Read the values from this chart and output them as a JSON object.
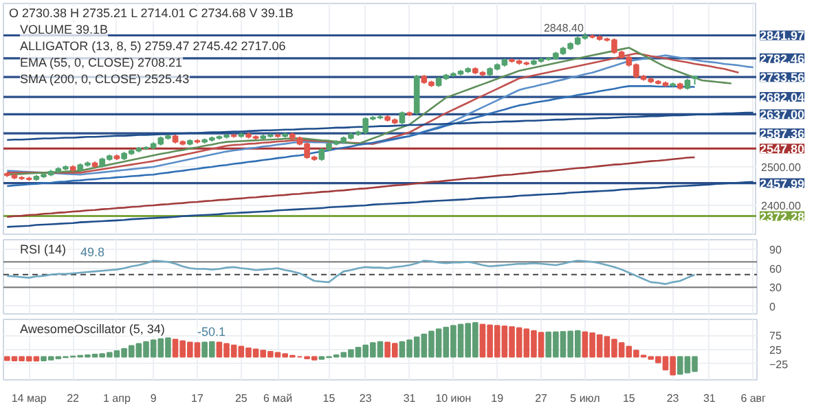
{
  "chart_data": [
    {
      "type": "candlestick",
      "tick_labels": "y",
      "grid": true,
      "annotations": [
        "O 2730.38 H 2735.21 L 2714.01 C 2734.68 V 39.1B",
        "VOLUME 39.1B",
        "ALLIGATOR (13, 8, 5) 2759.47 2745.42 2717.06",
        "EMA (55, 0, CLOSE) 2708.21",
        "SMA (200, 0, CLOSE) 2525.43",
        "2848.40"
      ],
      "categories": [
        null,
        null,
        null,
        null,
        null,
        null,
        null,
        null,
        null,
        null,
        null,
        null,
        null,
        null,
        null,
        null,
        null,
        null,
        null,
        null,
        null,
        null,
        null,
        null,
        null,
        null,
        null,
        null,
        null,
        null,
        null,
        null,
        null,
        null,
        null,
        null,
        null,
        null,
        null,
        null,
        null,
        null,
        null,
        null,
        null,
        null,
        null,
        null,
        null,
        null,
        null,
        null,
        null,
        null,
        null,
        null,
        null,
        null,
        null,
        null,
        null,
        null,
        null,
        null,
        null,
        null,
        null,
        null,
        null,
        null,
        null,
        null,
        null,
        null,
        null,
        null,
        null,
        null,
        null,
        null,
        null,
        null,
        null,
        null,
        null,
        null,
        null,
        null,
        null,
        null,
        null,
        null,
        null,
        null,
        null,
        null,
        null,
        null,
        null,
        null,
        null,
        null,
        null
      ],
      "ylim": [
        2325,
        2925
      ],
      "yticks": [
        {
          "value": 2500,
          "label": "2500.00"
        },
        {
          "value": 2400,
          "label": "2400.00"
        }
      ],
      "ohlc": [
        [
          2482,
          2486,
          2474,
          2478
        ],
        [
          2478,
          2482,
          2468,
          2472
        ],
        [
          2472,
          2476,
          2466,
          2470
        ],
        [
          2470,
          2474,
          2464,
          2468
        ],
        [
          2468,
          2479,
          2464,
          2475
        ],
        [
          2475,
          2484,
          2471,
          2480
        ],
        [
          2480,
          2492,
          2476,
          2488
        ],
        [
          2488,
          2499,
          2484,
          2495
        ],
        [
          2495,
          2504,
          2491,
          2500
        ],
        [
          2500,
          2504,
          2488,
          2492
        ],
        [
          2492,
          2509,
          2488,
          2505
        ],
        [
          2505,
          2514,
          2501,
          2510
        ],
        [
          2510,
          2514,
          2498,
          2502
        ],
        [
          2502,
          2524,
          2498,
          2520
        ],
        [
          2520,
          2532,
          2516,
          2528
        ],
        [
          2528,
          2532,
          2518,
          2522
        ],
        [
          2522,
          2539,
          2518,
          2535
        ],
        [
          2535,
          2546,
          2531,
          2542
        ],
        [
          2542,
          2552,
          2538,
          2548
        ],
        [
          2548,
          2554,
          2544,
          2550
        ],
        [
          2550,
          2564,
          2546,
          2560
        ],
        [
          2560,
          2579,
          2556,
          2575
        ],
        [
          2575,
          2584,
          2571,
          2580
        ],
        [
          2580,
          2584,
          2561,
          2565
        ],
        [
          2565,
          2569,
          2556,
          2560
        ],
        [
          2560,
          2572,
          2556,
          2568
        ],
        [
          2568,
          2572,
          2561,
          2565
        ],
        [
          2565,
          2574,
          2561,
          2570
        ],
        [
          2570,
          2579,
          2566,
          2575
        ],
        [
          2575,
          2582,
          2571,
          2578
        ],
        [
          2578,
          2586,
          2574,
          2582
        ],
        [
          2582,
          2586,
          2576,
          2580
        ],
        [
          2580,
          2589,
          2576,
          2585
        ],
        [
          2585,
          2589,
          2574,
          2578
        ],
        [
          2578,
          2582,
          2571,
          2575
        ],
        [
          2575,
          2584,
          2571,
          2580
        ],
        [
          2580,
          2586,
          2576,
          2582
        ],
        [
          2582,
          2586,
          2576,
          2580
        ],
        [
          2580,
          2589,
          2576,
          2585
        ],
        [
          2585,
          2589,
          2571,
          2575
        ],
        [
          2575,
          2579,
          2556,
          2560
        ],
        [
          2560,
          2564,
          2521,
          2525
        ],
        [
          2525,
          2529,
          2516,
          2520
        ],
        [
          2520,
          2549,
          2516,
          2545
        ],
        [
          2545,
          2564,
          2541,
          2560
        ],
        [
          2560,
          2569,
          2556,
          2565
        ],
        [
          2565,
          2579,
          2561,
          2575
        ],
        [
          2575,
          2589,
          2571,
          2585
        ],
        [
          2585,
          2594,
          2581,
          2590
        ],
        [
          2590,
          2629,
          2586,
          2625
        ],
        [
          2625,
          2632,
          2621,
          2628
        ],
        [
          2628,
          2634,
          2624,
          2630
        ],
        [
          2630,
          2634,
          2618,
          2622
        ],
        [
          2622,
          2626,
          2611,
          2615
        ],
        [
          2615,
          2644,
          2611,
          2640
        ],
        [
          2640,
          2644,
          2632,
          2636
        ],
        [
          2640,
          2739,
          2636,
          2735
        ],
        [
          2735,
          2739,
          2716,
          2720
        ],
        [
          2720,
          2724,
          2708,
          2712
        ],
        [
          2712,
          2734,
          2708,
          2730
        ],
        [
          2730,
          2742,
          2726,
          2738
        ],
        [
          2738,
          2746,
          2734,
          2742
        ],
        [
          2742,
          2752,
          2738,
          2748
        ],
        [
          2748,
          2759,
          2744,
          2755
        ],
        [
          2755,
          2759,
          2741,
          2745
        ],
        [
          2745,
          2749,
          2736,
          2740
        ],
        [
          2740,
          2759,
          2736,
          2755
        ],
        [
          2755,
          2769,
          2751,
          2765
        ],
        [
          2765,
          2782,
          2761,
          2778
        ],
        [
          2778,
          2782,
          2771,
          2775
        ],
        [
          2775,
          2779,
          2766,
          2770
        ],
        [
          2770,
          2774,
          2764,
          2768
        ],
        [
          2768,
          2779,
          2764,
          2775
        ],
        [
          2775,
          2784,
          2771,
          2780
        ],
        [
          2780,
          2786,
          2776,
          2782
        ],
        [
          2782,
          2799,
          2778,
          2795
        ],
        [
          2795,
          2812,
          2791,
          2808
        ],
        [
          2808,
          2824,
          2804,
          2820
        ],
        [
          2820,
          2839,
          2816,
          2835
        ],
        [
          2835,
          2848.4,
          2831,
          2840
        ],
        [
          2840,
          2844,
          2834,
          2838
        ],
        [
          2838,
          2842,
          2828,
          2832
        ],
        [
          2832,
          2836,
          2826,
          2830
        ],
        [
          2830,
          2834,
          2794,
          2798
        ],
        [
          2798,
          2802,
          2781,
          2785
        ],
        [
          2785,
          2789,
          2761,
          2765
        ],
        [
          2765,
          2769,
          2731,
          2735
        ],
        [
          2735,
          2739,
          2724,
          2728
        ],
        [
          2728,
          2732,
          2718,
          2722
        ],
        [
          2722,
          2726,
          2714,
          2718
        ],
        [
          2718,
          2722,
          2708,
          2712
        ],
        [
          2712,
          2719,
          2708,
          2715
        ],
        [
          2715,
          2719,
          2701,
          2705
        ],
        [
          2705,
          2729,
          2701,
          2725
        ],
        [
          2730.38,
          2735.21,
          2714.01,
          2734.68
        ],
        null,
        null,
        null,
        null,
        null,
        null,
        null,
        null
      ],
      "colors": [
        "#e2574c",
        "#e2574c",
        "#e2574c",
        "#e2574c",
        "#53a36f",
        "#53a36f",
        "#53a36f",
        "#53a36f",
        "#53a36f",
        "#e2574c",
        "#53a36f",
        "#53a36f",
        "#e2574c",
        "#53a36f",
        "#53a36f",
        "#e2574c",
        "#53a36f",
        "#53a36f",
        "#53a36f",
        "#53a36f",
        "#53a36f",
        "#53a36f",
        "#53a36f",
        "#e2574c",
        "#e2574c",
        "#53a36f",
        "#e2574c",
        "#53a36f",
        "#53a36f",
        "#53a36f",
        "#53a36f",
        "#e2574c",
        "#53a36f",
        "#e2574c",
        "#e2574c",
        "#53a36f",
        "#53a36f",
        "#e2574c",
        "#53a36f",
        "#e2574c",
        "#e2574c",
        "#e2574c",
        "#e2574c",
        "#53a36f",
        "#53a36f",
        "#53a36f",
        "#53a36f",
        "#53a36f",
        "#53a36f",
        "#53a36f",
        "#53a36f",
        "#53a36f",
        "#e2574c",
        "#e2574c",
        "#53a36f",
        "#e2574c",
        "#53a36f",
        "#e2574c",
        "#e2574c",
        "#53a36f",
        "#53a36f",
        "#53a36f",
        "#53a36f",
        "#53a36f",
        "#e2574c",
        "#e2574c",
        "#53a36f",
        "#53a36f",
        "#53a36f",
        "#e2574c",
        "#e2574c",
        "#e2574c",
        "#53a36f",
        "#53a36f",
        "#53a36f",
        "#53a36f",
        "#53a36f",
        "#53a36f",
        "#53a36f",
        "#53a36f",
        "#e2574c",
        "#e2574c",
        "#e2574c",
        "#e2574c",
        "#e2574c",
        "#e2574c",
        "#e2574c",
        "#e2574c",
        "#e2574c",
        "#e2574c",
        "#e2574c",
        "#53a36f",
        "#e2574c",
        "#53a36f",
        "#53a36f",
        null,
        null,
        null,
        null,
        null,
        null,
        null,
        null
      ],
      "series": [
        {
          "type": "line",
          "color": "#5b8fc9",
          "values": [
            2490,
            2489,
            2488,
            2487,
            2486,
            2485,
            2484,
            2483,
            2482,
            2481,
            2480,
            2482,
            2484,
            2486,
            2488,
            2490,
            2492,
            2494,
            2496,
            2498,
            2500,
            2504,
            2508,
            2512,
            2516,
            2520,
            2524,
            2528,
            2532,
            2536,
            2540,
            2543,
            2545,
            2548,
            2550,
            2553,
            2555,
            2558,
            2560,
            2563,
            2565,
            2565,
            2564,
            2564,
            2563,
            2563,
            2562,
            2562,
            2561,
            2561,
            2560,
            2564,
            2568,
            2572,
            2576,
            2580,
            2586,
            2592,
            2598,
            2604,
            2610,
            2619,
            2628,
            2637,
            2646,
            2655,
            2664,
            2673,
            2682,
            2691,
            2700,
            2705,
            2709,
            2714,
            2718,
            2723,
            2727,
            2732,
            2736,
            2741,
            2745,
            2751,
            2757,
            2763,
            2769,
            2775,
            2778,
            2781,
            2784,
            2787,
            2790,
            2787,
            2784,
            2781,
            2778,
            2775,
            2773,
            2771,
            2768,
            2766,
            2764,
            2761,
            2759
          ]
        },
        {
          "type": "line",
          "color": "#c0504d",
          "values": [
            2485,
            2485,
            2485,
            2485,
            2485,
            2485,
            2485,
            2485,
            2485,
            2485,
            2485,
            2488,
            2491,
            2494,
            2497,
            2500,
            2503,
            2506,
            2509,
            2512,
            2515,
            2519,
            2523,
            2527,
            2531,
            2535,
            2539,
            2543,
            2547,
            2551,
            2555,
            2557,
            2558,
            2560,
            2561,
            2563,
            2564,
            2566,
            2567,
            2569,
            2570,
            2569,
            2568,
            2567,
            2566,
            2565,
            2564,
            2563,
            2562,
            2561,
            2560,
            2566,
            2572,
            2578,
            2584,
            2590,
            2600,
            2610,
            2620,
            2630,
            2640,
            2649,
            2658,
            2667,
            2676,
            2685,
            2694,
            2703,
            2712,
            2721,
            2730,
            2734,
            2738,
            2742,
            2746,
            2750,
            2754,
            2758,
            2762,
            2766,
            2770,
            2774,
            2778,
            2782,
            2787,
            2791,
            2795,
            2792,
            2788,
            2785,
            2782,
            2778,
            2775,
            2772,
            2768,
            2765,
            2762,
            2758,
            2755,
            2750,
            2745,
            null,
            null
          ]
        },
        {
          "type": "line",
          "color": "#5f8f5a",
          "values": [
            2480,
            2481,
            2482,
            2483,
            2484,
            2485,
            2486,
            2487,
            2488,
            2489,
            2490,
            2494,
            2498,
            2502,
            2506,
            2510,
            2514,
            2518,
            2522,
            2526,
            2530,
            2534,
            2537,
            2541,
            2544,
            2548,
            2551,
            2555,
            2558,
            2562,
            2565,
            2566,
            2567,
            2568,
            2569,
            2570,
            2571,
            2572,
            2573,
            2574,
            2575,
            2573,
            2571,
            2569,
            2568,
            2566,
            2564,
            2562,
            2560,
            2567,
            2574,
            2581,
            2589,
            2596,
            2603,
            2610,
            2624,
            2638,
            2652,
            2666,
            2680,
            2687,
            2694,
            2701,
            2708,
            2715,
            2722,
            2729,
            2736,
            2743,
            2750,
            2754,
            2758,
            2762,
            2766,
            2770,
            2774,
            2778,
            2782,
            2786,
            2790,
            2794,
            2798,
            2802,
            2806,
            2810,
            2800,
            2790,
            2780,
            2770,
            2760,
            2753,
            2746,
            2739,
            2732,
            2725,
            2723,
            2721,
            2719,
            2717,
            null,
            null,
            null
          ]
        },
        {
          "type": "line",
          "color": "#2f6fb5",
          "values": [
            2450,
            2452,
            2453,
            2455,
            2456,
            2458,
            2459,
            2461,
            2462,
            2464,
            2465,
            2467,
            2468,
            2470,
            2471,
            2473,
            2474,
            2476,
            2477,
            2479,
            2480,
            2483,
            2485,
            2488,
            2490,
            2493,
            2495,
            2498,
            2500,
            2503,
            2505,
            2508,
            2510,
            2513,
            2515,
            2518,
            2520,
            2523,
            2525,
            2528,
            2530,
            2533,
            2537,
            2540,
            2543,
            2547,
            2550,
            2553,
            2557,
            2560,
            2563,
            2567,
            2570,
            2573,
            2577,
            2580,
            2585,
            2591,
            2596,
            2601,
            2607,
            2612,
            2617,
            2623,
            2628,
            2633,
            2639,
            2644,
            2649,
            2655,
            2660,
            2663,
            2667,
            2670,
            2673,
            2677,
            2680,
            2683,
            2687,
            2690,
            2693,
            2697,
            2700,
            2703,
            2707,
            2710,
            2710,
            2710,
            2710,
            2709,
            2709,
            2709,
            2709,
            2708,
            2708,
            null,
            null,
            null,
            null,
            null,
            null,
            null,
            null
          ]
        },
        {
          "type": "line",
          "color": "#a23b3b",
          "values": [
            2370,
            2372,
            2373,
            2375,
            2376,
            2378,
            2379,
            2381,
            2382,
            2384,
            2385,
            2387,
            2388,
            2390,
            2391,
            2393,
            2394,
            2396,
            2397,
            2399,
            2400,
            2402,
            2403,
            2405,
            2406,
            2408,
            2409,
            2411,
            2412,
            2414,
            2415,
            2417,
            2418,
            2420,
            2421,
            2423,
            2424,
            2426,
            2427,
            2429,
            2430,
            2432,
            2433,
            2435,
            2436,
            2438,
            2439,
            2441,
            2443,
            2444,
            2446,
            2448,
            2450,
            2452,
            2453,
            2455,
            2457,
            2459,
            2461,
            2462,
            2464,
            2466,
            2468,
            2470,
            2471,
            2473,
            2475,
            2477,
            2479,
            2480,
            2482,
            2484,
            2486,
            2488,
            2489,
            2491,
            2493,
            2495,
            2497,
            2498,
            2500,
            2502,
            2504,
            2506,
            2507,
            2509,
            2511,
            2513,
            2515,
            2516,
            2518,
            2520,
            2522,
            2524,
            2525,
            null,
            null,
            null,
            null,
            null,
            null,
            null,
            null
          ]
        },
        {
          "type": "line",
          "color": "#1f4e8c",
          "values": [
            2570,
            2571,
            2571,
            2572,
            2573,
            2574,
            2574,
            2575,
            2576,
            2576,
            2577,
            2578,
            2578,
            2579,
            2580,
            2581,
            2581,
            2582,
            2583,
            2583,
            2584,
            2585,
            2585,
            2586,
            2587,
            2588,
            2588,
            2589,
            2590,
            2590,
            2591,
            2592,
            2592,
            2593,
            2594,
            2595,
            2595,
            2596,
            2597,
            2597,
            2598,
            2599,
            2599,
            2600,
            2601,
            2602,
            2602,
            2603,
            2604,
            2604,
            2605,
            2606,
            2606,
            2607,
            2608,
            2609,
            2609,
            2610,
            2611,
            2611,
            2612,
            2613,
            2613,
            2614,
            2615,
            2616,
            2616,
            2617,
            2618,
            2618,
            2619,
            2620,
            2620,
            2621,
            2622,
            2623,
            2623,
            2624,
            2625,
            2625,
            2626,
            2627,
            2627,
            2628,
            2629,
            2630,
            2630,
            2631,
            2632,
            2632,
            2633,
            2634,
            2634,
            2635,
            2636,
            2637,
            2637,
            2638,
            2639,
            2639,
            2640,
            2641,
            2641
          ]
        },
        {
          "type": "line",
          "color": "#1f4e8c",
          "values": [
            2344,
            2345,
            2346,
            2347,
            2349,
            2350,
            2351,
            2352,
            2353,
            2354,
            2356,
            2357,
            2358,
            2359,
            2360,
            2361,
            2362,
            2364,
            2365,
            2366,
            2367,
            2368,
            2369,
            2370,
            2372,
            2373,
            2374,
            2375,
            2376,
            2377,
            2379,
            2380,
            2381,
            2382,
            2383,
            2384,
            2385,
            2387,
            2388,
            2389,
            2390,
            2391,
            2392,
            2393,
            2395,
            2396,
            2397,
            2398,
            2399,
            2400,
            2402,
            2403,
            2404,
            2405,
            2406,
            2407,
            2408,
            2410,
            2411,
            2412,
            2413,
            2414,
            2415,
            2416,
            2418,
            2419,
            2420,
            2421,
            2422,
            2423,
            2425,
            2426,
            2427,
            2428,
            2429,
            2430,
            2431,
            2433,
            2434,
            2435,
            2436,
            2437,
            2438,
            2439,
            2441,
            2442,
            2443,
            2444,
            2445,
            2446,
            2448,
            2449,
            2450,
            2451,
            2452,
            2453,
            2454,
            2456,
            2457,
            2458,
            2459,
            2460,
            2461
          ]
        }
      ],
      "ref_lines": [
        {
          "axis": "y",
          "value": 2841.97,
          "label": "2841.97",
          "color": "#2b4f8a"
        },
        {
          "axis": "y",
          "value": 2782.46,
          "label": "2782.46",
          "color": "#2b4f8a"
        },
        {
          "axis": "y",
          "value": 2733.56,
          "label": "2733.56",
          "color": "#2b4f8a"
        },
        {
          "axis": "y",
          "value": 2682.04,
          "label": "2682.04",
          "color": "#2b4f8a"
        },
        {
          "axis": "y",
          "value": 2637.0,
          "label": "2637.00",
          "color": "#2b4f8a"
        },
        {
          "axis": "y",
          "value": 2587.36,
          "label": "2587.36",
          "color": "#2b4f8a"
        },
        {
          "axis": "y",
          "value": 2547.8,
          "label": "2547.80",
          "color": "#a83232"
        },
        {
          "axis": "y",
          "value": 2457.99,
          "label": "2457.99",
          "color": "#2b4f8a"
        },
        {
          "axis": "y",
          "value": 2372.28,
          "label": "2372.28",
          "color": "#7aa33a"
        }
      ]
    },
    {
      "type": "line",
      "title": "RSI (14)",
      "annotations": [
        "49.8"
      ],
      "tick_labels": "y",
      "grid": true,
      "color": "#6fa8c0",
      "categories": [
        null,
        null,
        null,
        null,
        null,
        null,
        null,
        null,
        null,
        null,
        null,
        null,
        null,
        null,
        null,
        null,
        null,
        null,
        null,
        null,
        null,
        null,
        null,
        null,
        null,
        null,
        null,
        null,
        null,
        null,
        null,
        null,
        null,
        null,
        null,
        null,
        null,
        null,
        null,
        null,
        null,
        null,
        null,
        null,
        null,
        null,
        null,
        null,
        null,
        null,
        null,
        null,
        null,
        null,
        null,
        null,
        null,
        null,
        null,
        null,
        null,
        null,
        null,
        null,
        null,
        null,
        null,
        null,
        null,
        null,
        null,
        null,
        null,
        null,
        null,
        null,
        null,
        null,
        null,
        null,
        null,
        null,
        null,
        null,
        null,
        null,
        null,
        null,
        null,
        null,
        null,
        null,
        null,
        null,
        null,
        null,
        null,
        null,
        null,
        null,
        null,
        null,
        null
      ],
      "ylim": [
        -12,
        105
      ],
      "yticks": [
        90,
        60,
        30,
        0
      ],
      "values": [
        48,
        47,
        46,
        45,
        47,
        48,
        50,
        51,
        51,
        52,
        53,
        54,
        55,
        56,
        57,
        58,
        60,
        63,
        65,
        68,
        72,
        71,
        70,
        67,
        63,
        60,
        59,
        59,
        58,
        59,
        61,
        62,
        60,
        59,
        57,
        58,
        59,
        60,
        57,
        55,
        52,
        46,
        40,
        39,
        38,
        47,
        55,
        57,
        60,
        62,
        61,
        61,
        60,
        62,
        63,
        65,
        68,
        72,
        71,
        69,
        68,
        69,
        69,
        70,
        68,
        65,
        63,
        64,
        65,
        66,
        67,
        67,
        68,
        67,
        66,
        65,
        67,
        70,
        72,
        71,
        70,
        68,
        65,
        62,
        58,
        53,
        48,
        43,
        38,
        37,
        35,
        38,
        40,
        45,
        49.8,
        null,
        null,
        null,
        null,
        null,
        null,
        null,
        null
      ],
      "ref_lines": [
        {
          "axis": "y",
          "value": 70,
          "label": null,
          "color": "#777777"
        },
        {
          "axis": "y",
          "value": 30,
          "label": null,
          "color": "#777777"
        },
        {
          "axis": "y",
          "value": 50,
          "label": null,
          "color": "#444444",
          "line_style": "dashed"
        }
      ]
    },
    {
      "type": "bar",
      "title": "AwesomeOscillator (5, 34)",
      "annotations": [
        "-50.1"
      ],
      "grid": true,
      "categories": [
        null,
        null,
        null,
        "14 мар",
        null,
        null,
        null,
        null,
        null,
        "22",
        null,
        null,
        null,
        null,
        null,
        "1 апр",
        null,
        null,
        null,
        null,
        "9",
        null,
        null,
        null,
        null,
        null,
        "17",
        null,
        null,
        null,
        null,
        null,
        "25",
        null,
        null,
        null,
        null,
        "6 май",
        null,
        null,
        null,
        null,
        null,
        null,
        "15",
        null,
        null,
        null,
        null,
        "23",
        null,
        null,
        null,
        null,
        null,
        "31",
        null,
        null,
        null,
        null,
        null,
        "10 июн",
        null,
        null,
        null,
        null,
        null,
        "19",
        null,
        null,
        null,
        null,
        null,
        "27",
        null,
        null,
        null,
        null,
        null,
        "5 июл",
        null,
        null,
        null,
        null,
        null,
        "15",
        null,
        null,
        null,
        null,
        null,
        "23",
        null,
        null,
        null,
        null,
        "31",
        null,
        null,
        null,
        null,
        null,
        "6 авг"
      ],
      "ylim": [
        -80,
        130
      ],
      "yticks": [
        75,
        25,
        -25
      ],
      "values": [
        -12,
        -13,
        -13,
        -14,
        -14,
        -13,
        -10,
        -6,
        -2,
        2,
        4,
        6,
        8,
        10,
        14,
        20,
        28,
        38,
        45,
        52,
        58,
        62,
        65,
        60,
        55,
        50,
        48,
        50,
        52,
        50,
        45,
        40,
        36,
        30,
        26,
        22,
        18,
        14,
        10,
        4,
        0,
        -6,
        -10,
        -8,
        -2,
        6,
        14,
        24,
        32,
        40,
        48,
        52,
        50,
        46,
        52,
        58,
        68,
        78,
        88,
        96,
        102,
        108,
        112,
        115,
        118,
        112,
        110,
        108,
        106,
        104,
        100,
        96,
        90,
        84,
        85,
        86,
        87,
        88,
        90,
        86,
        82,
        76,
        70,
        60,
        48,
        36,
        22,
        5,
        -8,
        -20,
        -45,
        -62,
        -60,
        -55,
        -50.1,
        null,
        null,
        null,
        null,
        null,
        null,
        null,
        null
      ],
      "colors": [
        "#e2574c",
        "#e2574c",
        "#e2574c",
        "#e2574c",
        "#e2574c",
        "#5e9e74",
        "#5e9e74",
        "#5e9e74",
        "#5e9e74",
        "#5e9e74",
        "#5e9e74",
        "#5e9e74",
        "#5e9e74",
        "#5e9e74",
        "#5e9e74",
        "#5e9e74",
        "#5e9e74",
        "#5e9e74",
        "#5e9e74",
        "#5e9e74",
        "#5e9e74",
        "#5e9e74",
        "#5e9e74",
        "#e2574c",
        "#e2574c",
        "#e2574c",
        "#e2574c",
        "#5e9e74",
        "#5e9e74",
        "#e2574c",
        "#e2574c",
        "#e2574c",
        "#e2574c",
        "#e2574c",
        "#e2574c",
        "#e2574c",
        "#e2574c",
        "#e2574c",
        "#e2574c",
        "#e2574c",
        "#e2574c",
        "#e2574c",
        "#e2574c",
        "#5e9e74",
        "#5e9e74",
        "#5e9e74",
        "#5e9e74",
        "#5e9e74",
        "#5e9e74",
        "#5e9e74",
        "#5e9e74",
        "#5e9e74",
        "#e2574c",
        "#e2574c",
        "#5e9e74",
        "#5e9e74",
        "#5e9e74",
        "#5e9e74",
        "#5e9e74",
        "#5e9e74",
        "#5e9e74",
        "#5e9e74",
        "#5e9e74",
        "#5e9e74",
        "#5e9e74",
        "#e2574c",
        "#e2574c",
        "#e2574c",
        "#e2574c",
        "#e2574c",
        "#e2574c",
        "#e2574c",
        "#e2574c",
        "#e2574c",
        "#5e9e74",
        "#5e9e74",
        "#5e9e74",
        "#5e9e74",
        "#5e9e74",
        "#e2574c",
        "#e2574c",
        "#e2574c",
        "#e2574c",
        "#e2574c",
        "#e2574c",
        "#e2574c",
        "#e2574c",
        "#e2574c",
        "#e2574c",
        "#e2574c",
        "#e2574c",
        "#e2574c",
        "#5e9e74",
        "#5e9e74",
        "#5e9e74",
        null,
        null,
        null,
        null,
        null,
        null,
        null,
        null
      ]
    }
  ]
}
